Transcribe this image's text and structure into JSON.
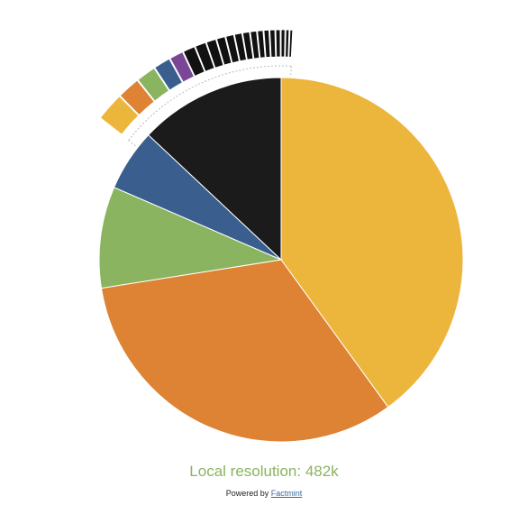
{
  "chart_data": {
    "type": "pie",
    "title": "",
    "slices": [
      {
        "value": 40.0,
        "color": "#ecb63c"
      },
      {
        "value": 32.5,
        "color": "#de8233"
      },
      {
        "value": 9.0,
        "color": "#8ab45f"
      },
      {
        "value": 5.5,
        "color": "#3a5f8e"
      },
      {
        "value": 13.0,
        "color": "#1b1b1b"
      }
    ],
    "breakdown_ring": {
      "description_of": "last slice",
      "segments": [
        {
          "value": 5.0,
          "color": "#ecb63c"
        },
        {
          "value": 4.0,
          "color": "#de8233"
        },
        {
          "value": 3.5,
          "color": "#8ab45f"
        },
        {
          "value": 3.0,
          "color": "#3a5f8e"
        },
        {
          "value": 2.5,
          "color": "#7a4796"
        },
        {
          "value": 2.2,
          "color": "#111111"
        },
        {
          "value": 2.0,
          "color": "#111111"
        },
        {
          "value": 1.8,
          "color": "#111111"
        },
        {
          "value": 1.6,
          "color": "#111111"
        },
        {
          "value": 1.5,
          "color": "#111111"
        },
        {
          "value": 1.4,
          "color": "#111111"
        },
        {
          "value": 1.3,
          "color": "#111111"
        },
        {
          "value": 1.2,
          "color": "#111111"
        },
        {
          "value": 1.1,
          "color": "#111111"
        },
        {
          "value": 1.0,
          "color": "#111111"
        },
        {
          "value": 1.0,
          "color": "#111111"
        },
        {
          "value": 0.9,
          "color": "#111111"
        },
        {
          "value": 0.8,
          "color": "#111111"
        },
        {
          "value": 0.7,
          "color": "#111111"
        },
        {
          "value": 0.6,
          "color": "#111111"
        }
      ]
    },
    "total_label": "Local resolution: 482k",
    "total_label_color": "#8ab45f"
  },
  "footer": {
    "powered_prefix": "Powered by ",
    "powered_link": "Factmint"
  }
}
